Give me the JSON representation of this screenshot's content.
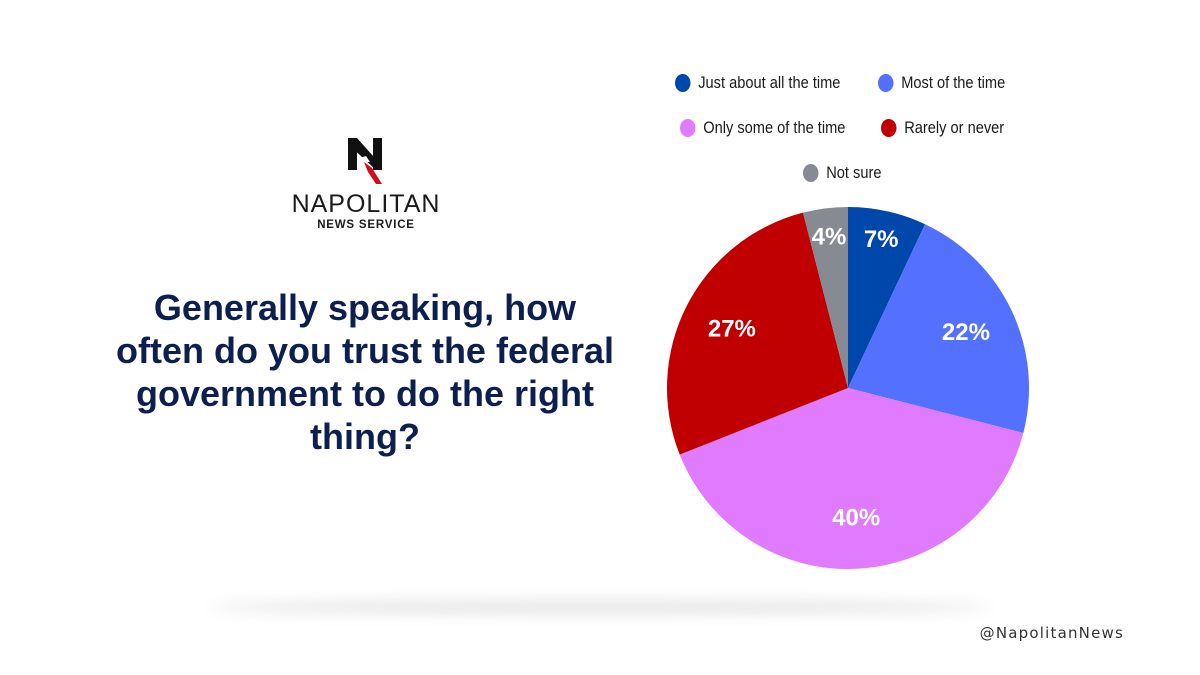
{
  "brand": {
    "name": "NAPOLITAN",
    "sub": "NEWS SERVICE",
    "mark_letter": "N"
  },
  "handle": "@NapolitanNews",
  "chart_data": {
    "type": "pie",
    "title": "Generally speaking, how often do you trust the federal government to do the right thing?",
    "legend_position": "top",
    "slices": [
      {
        "label": "Just about all the time",
        "value": 7,
        "display": "7%",
        "color": "#0047ab"
      },
      {
        "label": "Most of the time",
        "value": 22,
        "display": "22%",
        "color": "#5470ff"
      },
      {
        "label": "Only some of the time",
        "value": 40,
        "display": "40%",
        "color": "#e07bff"
      },
      {
        "label": "Rarely or never",
        "value": 27,
        "display": "27%",
        "color": "#c00000"
      },
      {
        "label": "Not sure",
        "value": 4,
        "display": "4%",
        "color": "#858a93"
      }
    ]
  }
}
